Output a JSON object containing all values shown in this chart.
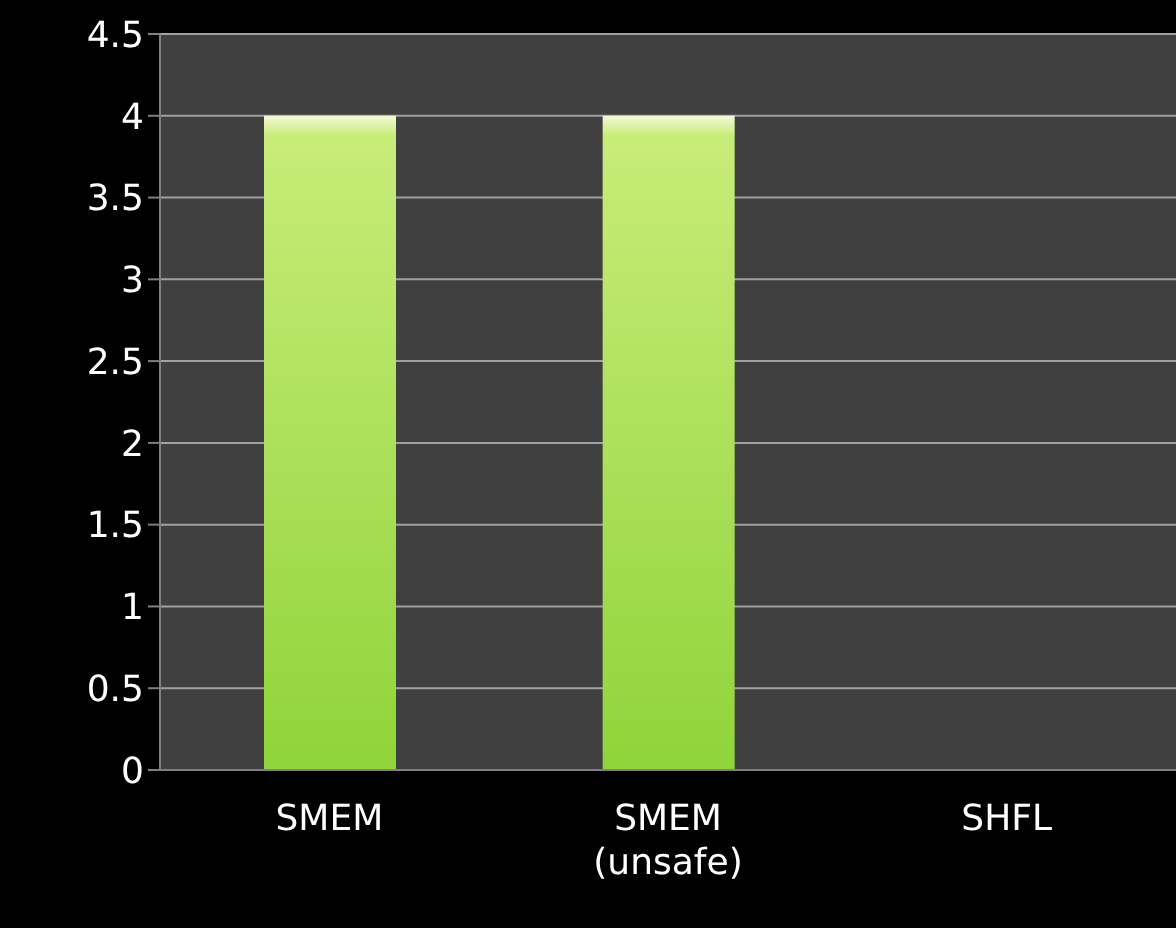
{
  "chart_data": {
    "type": "bar",
    "categories": [
      "SMEM",
      "SMEM (unsafe)",
      "SHFL"
    ],
    "values": [
      4,
      4,
      0
    ],
    "color": "#8fd43a",
    "ylim": [
      0,
      4.5
    ],
    "yticks": [
      0,
      0.5,
      1,
      1.5,
      2,
      2.5,
      3,
      3.5,
      4,
      4.5
    ],
    "grid": "y"
  }
}
